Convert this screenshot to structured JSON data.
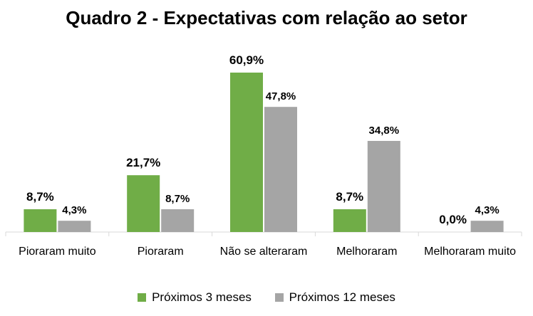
{
  "chart_data": {
    "type": "bar",
    "title": "Quadro 2 - Expectativas com relação ao setor",
    "categories": [
      "Pioraram muito",
      "Pioraram",
      "Não se alteraram",
      "Melhoraram",
      "Melhoraram muito"
    ],
    "series": [
      {
        "name": "Próximos 3 meses",
        "values": [
          8.7,
          21.7,
          60.9,
          8.7,
          0.0
        ],
        "labels": [
          "8,7%",
          "21,7%",
          "60,9%",
          "8,7%",
          "0,0%"
        ],
        "color": "#70ad47"
      },
      {
        "name": "Próximos 12 meses",
        "values": [
          4.3,
          8.7,
          47.8,
          34.8,
          4.3
        ],
        "labels": [
          "4,3%",
          "8,7%",
          "47,8%",
          "34,8%",
          "4,3%"
        ],
        "color": "#a5a5a5"
      }
    ],
    "xlabel": "",
    "ylabel": "",
    "ylim": [
      0,
      65
    ],
    "grid": false,
    "legend_position": "bottom"
  }
}
